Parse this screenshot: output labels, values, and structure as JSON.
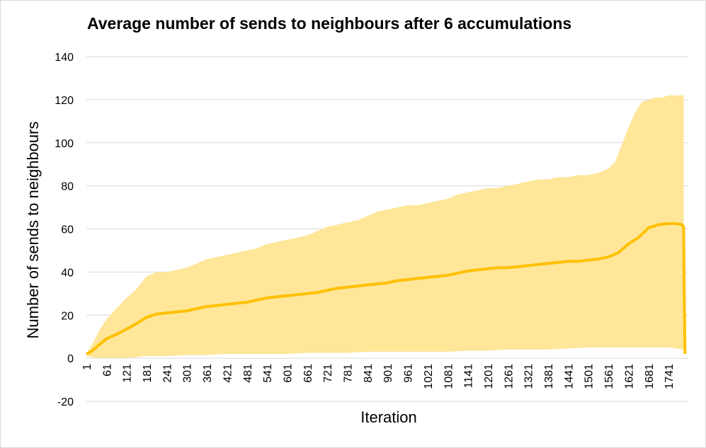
{
  "chart_data": {
    "type": "area",
    "title": "Average number of sends to neighbours after 6 accumulations",
    "xlabel": "Iteration",
    "ylabel": "Number of sends to neighbours",
    "ylim": [
      -20,
      140
    ],
    "yticks": [
      -20,
      0,
      20,
      40,
      60,
      80,
      100,
      120,
      140
    ],
    "xlim": [
      1,
      1800
    ],
    "xticks": [
      "1",
      "61",
      "121",
      "181",
      "241",
      "301",
      "361",
      "421",
      "481",
      "541",
      "601",
      "661",
      "721",
      "781",
      "841",
      "901",
      "961",
      "1021",
      "1081",
      "1141",
      "1201",
      "1261",
      "1321",
      "1381",
      "1441",
      "1501",
      "1561",
      "1621",
      "1681",
      "1741"
    ],
    "grid": true,
    "legend": "none",
    "colors": {
      "line": "#ffc000",
      "band": "#ffe699",
      "grid": "#d9d9d9"
    },
    "series": [
      {
        "role": "band",
        "upper": [
          [
            1,
            2
          ],
          [
            20,
            7
          ],
          [
            40,
            13
          ],
          [
            61,
            18
          ],
          [
            90,
            23
          ],
          [
            121,
            28
          ],
          [
            150,
            32
          ],
          [
            181,
            38
          ],
          [
            211,
            40
          ],
          [
            241,
            40
          ],
          [
            271,
            41
          ],
          [
            301,
            42
          ],
          [
            331,
            44
          ],
          [
            361,
            46
          ],
          [
            391,
            47
          ],
          [
            421,
            48
          ],
          [
            451,
            49
          ],
          [
            481,
            50
          ],
          [
            511,
            51
          ],
          [
            541,
            53
          ],
          [
            571,
            54
          ],
          [
            601,
            55
          ],
          [
            631,
            56
          ],
          [
            661,
            57
          ],
          [
            691,
            59
          ],
          [
            721,
            61
          ],
          [
            751,
            62
          ],
          [
            781,
            63
          ],
          [
            811,
            64
          ],
          [
            841,
            66
          ],
          [
            871,
            68
          ],
          [
            901,
            69
          ],
          [
            931,
            70
          ],
          [
            961,
            71
          ],
          [
            991,
            71
          ],
          [
            1021,
            72
          ],
          [
            1051,
            73
          ],
          [
            1081,
            74
          ],
          [
            1111,
            76
          ],
          [
            1141,
            77
          ],
          [
            1171,
            78
          ],
          [
            1201,
            79
          ],
          [
            1231,
            79
          ],
          [
            1261,
            80
          ],
          [
            1291,
            81
          ],
          [
            1321,
            82
          ],
          [
            1351,
            83
          ],
          [
            1381,
            83
          ],
          [
            1411,
            84
          ],
          [
            1441,
            84
          ],
          [
            1471,
            85
          ],
          [
            1501,
            85
          ],
          [
            1531,
            86
          ],
          [
            1561,
            88
          ],
          [
            1581,
            91
          ],
          [
            1601,
            99
          ],
          [
            1621,
            107
          ],
          [
            1641,
            114
          ],
          [
            1661,
            119
          ],
          [
            1681,
            120
          ],
          [
            1701,
            121
          ],
          [
            1721,
            121
          ],
          [
            1741,
            122
          ],
          [
            1761,
            122
          ],
          [
            1786,
            122
          ]
        ],
        "lower": [
          [
            1,
            1
          ],
          [
            30,
            0
          ],
          [
            61,
            0
          ],
          [
            90,
            0
          ],
          [
            121,
            0
          ],
          [
            181,
            1
          ],
          [
            241,
            1
          ],
          [
            301,
            1.5
          ],
          [
            361,
            1.5
          ],
          [
            421,
            2
          ],
          [
            481,
            2
          ],
          [
            541,
            2
          ],
          [
            601,
            2
          ],
          [
            661,
            2.5
          ],
          [
            721,
            2.5
          ],
          [
            781,
            2.5
          ],
          [
            841,
            3
          ],
          [
            901,
            3
          ],
          [
            961,
            3
          ],
          [
            1021,
            3
          ],
          [
            1081,
            3
          ],
          [
            1141,
            3.5
          ],
          [
            1201,
            3.5
          ],
          [
            1261,
            4
          ],
          [
            1321,
            4
          ],
          [
            1381,
            4
          ],
          [
            1441,
            4.5
          ],
          [
            1501,
            5
          ],
          [
            1561,
            5
          ],
          [
            1621,
            5
          ],
          [
            1681,
            5
          ],
          [
            1741,
            5
          ],
          [
            1786,
            4
          ]
        ]
      },
      {
        "role": "line",
        "values": [
          [
            1,
            2
          ],
          [
            15,
            3
          ],
          [
            30,
            5
          ],
          [
            45,
            7
          ],
          [
            61,
            9
          ],
          [
            90,
            11
          ],
          [
            121,
            13.5
          ],
          [
            150,
            16
          ],
          [
            181,
            19
          ],
          [
            211,
            20.5
          ],
          [
            241,
            21
          ],
          [
            271,
            21.5
          ],
          [
            301,
            22
          ],
          [
            331,
            23
          ],
          [
            361,
            24
          ],
          [
            391,
            24.5
          ],
          [
            421,
            25
          ],
          [
            451,
            25.5
          ],
          [
            481,
            26
          ],
          [
            511,
            27
          ],
          [
            541,
            28
          ],
          [
            571,
            28.5
          ],
          [
            601,
            29
          ],
          [
            631,
            29.5
          ],
          [
            661,
            30
          ],
          [
            691,
            30.5
          ],
          [
            721,
            31.5
          ],
          [
            751,
            32.5
          ],
          [
            781,
            33
          ],
          [
            811,
            33.5
          ],
          [
            841,
            34
          ],
          [
            871,
            34.5
          ],
          [
            901,
            35
          ],
          [
            931,
            36
          ],
          [
            961,
            36.5
          ],
          [
            991,
            37
          ],
          [
            1021,
            37.5
          ],
          [
            1051,
            38
          ],
          [
            1081,
            38.5
          ],
          [
            1111,
            39.5
          ],
          [
            1141,
            40.5
          ],
          [
            1171,
            41
          ],
          [
            1201,
            41.5
          ],
          [
            1231,
            42
          ],
          [
            1261,
            42
          ],
          [
            1291,
            42.5
          ],
          [
            1321,
            43
          ],
          [
            1351,
            43.5
          ],
          [
            1381,
            44
          ],
          [
            1411,
            44.5
          ],
          [
            1441,
            45
          ],
          [
            1471,
            45
          ],
          [
            1501,
            45.5
          ],
          [
            1531,
            46
          ],
          [
            1561,
            47
          ],
          [
            1591,
            49
          ],
          [
            1621,
            53
          ],
          [
            1651,
            56
          ],
          [
            1681,
            60.5
          ],
          [
            1711,
            62
          ],
          [
            1741,
            62.5
          ],
          [
            1761,
            62.5
          ],
          [
            1781,
            62
          ],
          [
            1786,
            61
          ],
          [
            1788,
            30
          ],
          [
            1790,
            2
          ]
        ]
      }
    ]
  }
}
